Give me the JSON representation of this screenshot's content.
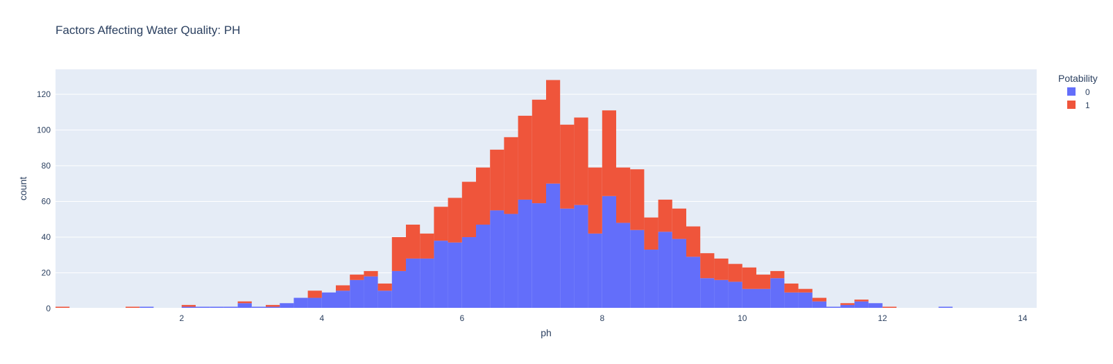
{
  "chart_data": {
    "type": "bar",
    "barmode": "stack",
    "title": "Factors Affecting Water Quality: PH",
    "xlabel": "ph",
    "ylabel": "count",
    "xlim": [
      0.2,
      14.2
    ],
    "ylim": [
      0,
      134
    ],
    "bin_width": 0.2,
    "bin_start": 0.2,
    "xticks": [
      2,
      4,
      6,
      8,
      10,
      12,
      14
    ],
    "yticks": [
      0,
      20,
      40,
      60,
      80,
      100,
      120
    ],
    "grid": true,
    "legend": {
      "title": "Potability",
      "placement": "top-right"
    },
    "series": [
      {
        "name": "0",
        "color": "#636efa",
        "values": [
          0,
          0,
          0,
          0,
          0,
          0,
          1,
          0,
          0,
          1,
          1,
          1,
          1,
          3,
          1,
          1,
          3,
          6,
          6,
          9,
          10,
          16,
          18,
          10,
          21,
          28,
          28,
          38,
          37,
          40,
          47,
          55,
          53,
          61,
          59,
          70,
          56,
          58,
          42,
          63,
          48,
          44,
          33,
          43,
          39,
          29,
          17,
          16,
          15,
          11,
          11,
          17,
          9,
          9,
          4,
          1,
          2,
          4,
          3,
          0,
          0,
          0,
          0,
          1,
          0,
          0,
          0,
          0,
          0,
          0,
          0,
          0,
          0,
          0,
          0,
          0,
          0,
          0,
          0,
          1,
          0,
          0,
          0,
          0,
          0,
          0,
          0,
          0,
          0,
          0,
          1
        ]
      },
      {
        "name": "1",
        "color": "#ef553b",
        "values": [
          1,
          0,
          0,
          0,
          0,
          1,
          0,
          0,
          0,
          1,
          0,
          0,
          0,
          1,
          0,
          1,
          0,
          0,
          4,
          0,
          3,
          3,
          3,
          4,
          19,
          19,
          14,
          19,
          25,
          31,
          32,
          34,
          43,
          47,
          58,
          58,
          47,
          49,
          37,
          48,
          31,
          34,
          18,
          18,
          17,
          17,
          14,
          12,
          10,
          12,
          8,
          4,
          5,
          2,
          2,
          0,
          1,
          1,
          0,
          1,
          0,
          0,
          0,
          0,
          0,
          0,
          0,
          0,
          0,
          0,
          0,
          0,
          0,
          0,
          0,
          0,
          0,
          0,
          0,
          0,
          0,
          0,
          0,
          0,
          0,
          0,
          0,
          0,
          0,
          0,
          0
        ]
      }
    ]
  }
}
